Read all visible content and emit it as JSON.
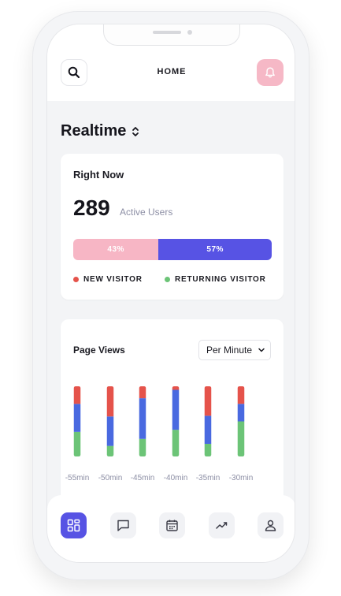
{
  "header": {
    "title": "HOME"
  },
  "section": {
    "title": "Realtime"
  },
  "right_now": {
    "title": "Right Now",
    "count": "289",
    "count_label": "Active Users",
    "new_pct_label": "43%",
    "returning_pct_label": "57%",
    "new_fraction": 0.43,
    "legend_new": "NEW VISITOR",
    "legend_returning": "RETURNING VISITOR",
    "colors": {
      "new": "#f7b6c5",
      "returning": "#5753e4",
      "dot_new": "#e5534b",
      "dot_returning": "#6cc477"
    }
  },
  "page_views": {
    "title": "Page Views",
    "select_value": "Per Minute"
  },
  "chart_data": {
    "type": "bar",
    "stacked": true,
    "categories": [
      "-55min",
      "-50min",
      "-45min",
      "-40min",
      "-35min",
      "-30min"
    ],
    "series": [
      {
        "color": "#6cc477",
        "values": [
          35,
          15,
          25,
          38,
          18,
          50
        ]
      },
      {
        "color": "#4969e0",
        "values": [
          40,
          42,
          58,
          57,
          40,
          25
        ]
      },
      {
        "color": "#e5534b",
        "values": [
          25,
          43,
          17,
          5,
          42,
          25
        ]
      }
    ],
    "ylim": [
      0,
      100
    ]
  },
  "tabbar": {
    "items": [
      {
        "name": "dashboard",
        "active": true
      },
      {
        "name": "messages",
        "active": false
      },
      {
        "name": "calendar",
        "active": false
      },
      {
        "name": "analytics",
        "active": false
      },
      {
        "name": "profile",
        "active": false
      }
    ]
  }
}
